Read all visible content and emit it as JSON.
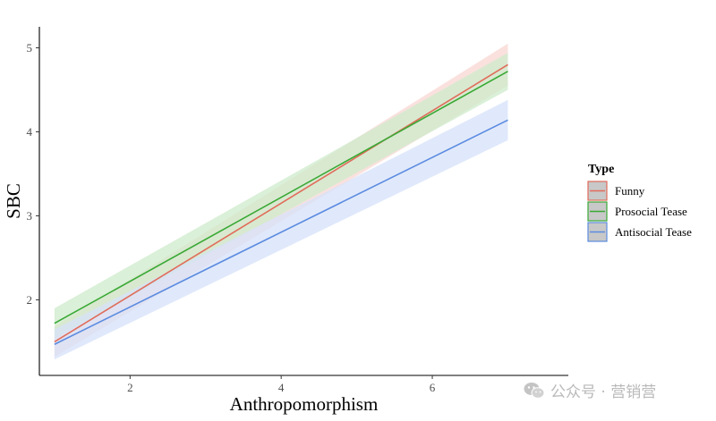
{
  "chart_data": {
    "type": "line",
    "xlabel": "Anthropomorphism",
    "ylabel": "SBC",
    "xlim": [
      0.8,
      7.8
    ],
    "ylim": [
      1.1,
      5.25
    ],
    "xticks": [
      2,
      4,
      6
    ],
    "yticks": [
      2,
      3,
      4,
      5
    ],
    "grid": false,
    "legend": {
      "title": "Type",
      "position": "right"
    },
    "confidence_band": true,
    "series": [
      {
        "name": "Funny",
        "color": "#e06c5a",
        "fill": "#f8d7d3",
        "x": [
          1,
          7
        ],
        "y": [
          1.5,
          4.8
        ],
        "lower": [
          1.32,
          4.55
        ],
        "upper": [
          1.68,
          5.05
        ]
      },
      {
        "name": "Prosocial Tease",
        "color": "#3aa935",
        "fill": "#cdebcb",
        "x": [
          1,
          7
        ],
        "y": [
          1.72,
          4.72
        ],
        "lower": [
          1.54,
          4.5
        ],
        "upper": [
          1.9,
          4.94
        ]
      },
      {
        "name": "Antisocial Tease",
        "color": "#5b8be0",
        "fill": "#d5e1fa",
        "x": [
          1,
          7
        ],
        "y": [
          1.47,
          4.14
        ],
        "lower": [
          1.29,
          3.9
        ],
        "upper": [
          1.65,
          4.38
        ]
      }
    ]
  },
  "watermark": {
    "text": "公众号 · 营销营",
    "icon": "wechat-icon"
  }
}
